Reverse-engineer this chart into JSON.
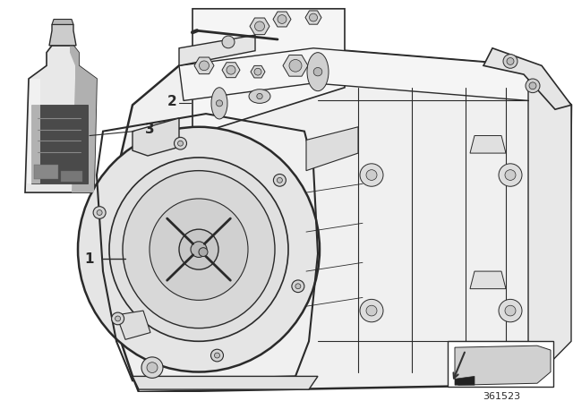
{
  "background_color": "#ffffff",
  "line_color": "#2a2a2a",
  "text_color": "#2a2a2a",
  "diagram_number": "361523",
  "bottle": {
    "body_color": "#e8e8e8",
    "shadow_color": "#b0b0b0",
    "label_color": "#4a4a4a",
    "cap_color": "#cccccc"
  },
  "kit_card_color": "#f5f5f5",
  "trans_body_color": "#f0f0f0",
  "trans_detail_color": "#d8d8d8"
}
